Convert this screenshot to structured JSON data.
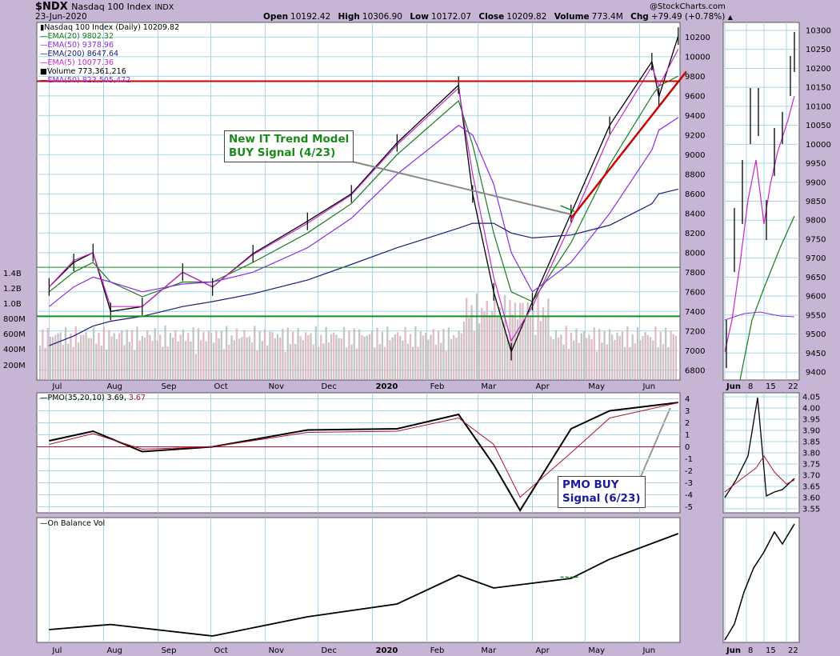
{
  "header": {
    "symbol": "$NDX",
    "name": "Nasdaq 100 Index",
    "exchange": "INDX",
    "date": "23-Jun-2020",
    "copyright": "@StockCharts.com",
    "open_label": "Open",
    "open": "10192.42",
    "high_label": "High",
    "high": "10306.90",
    "low_label": "Low",
    "low": "10172.07",
    "close_label": "Close",
    "close": "10209.82",
    "volume_label": "Volume",
    "volume": "773.4M",
    "chg_label": "Chg",
    "chg": "+79.49 (+0.78%)"
  },
  "legend": [
    {
      "text": "Nasdaq 100 Index (Daily) 10209.82",
      "color": "#000000"
    },
    {
      "text": "EMA(20) 9802.32",
      "color": "#1a7a1a"
    },
    {
      "text": "EMA(50) 9378.96",
      "color": "#8a2be2"
    },
    {
      "text": "EMA(200) 8647.64",
      "color": "#1c1c7a"
    },
    {
      "text": "EMA(5) 10077.36",
      "color": "#cc22cc"
    },
    {
      "text": "Volume 773,361,216",
      "color": "#000000"
    },
    {
      "text": "EMA(50) 823,505,472",
      "color": "#8a2be2"
    }
  ],
  "annotations": {
    "it_trend": [
      "New IT Trend Model",
      "BUY Signal (4/23)"
    ],
    "pmo_buy": [
      "PMO BUY",
      "Signal (6/23)"
    ]
  },
  "pmo_legend": {
    "label": "PMO(35,20,10)",
    "pmo": "3.69",
    "signal": "3.67"
  },
  "obv_legend": "On Balance Vol",
  "colors": {
    "background": "#c6b5d5",
    "panel": "#ffffff",
    "grid": "#a8d4e6",
    "support": "#1a8a1a",
    "resistance": "#cc0000",
    "price_bar": "#000000",
    "ema5": "#cc22cc",
    "ema20": "#1a7a1a",
    "ema50": "#8a2be2",
    "ema200": "#1c1c7a",
    "volume_up": "#bbbbbb",
    "volume_down": "#e0aec0",
    "callout_green": "#1a8a1a",
    "callout_blue": "#1a1aa0"
  },
  "chart_data": [
    {
      "type": "line",
      "title": "Nasdaq 100 Index (Daily)",
      "xlabel": "",
      "ylabel": "",
      "ylim": [
        6700,
        10350
      ],
      "price_ticks": [
        "10200",
        "10000",
        "9800",
        "9600",
        "9400",
        "9200",
        "9000",
        "8800",
        "8600",
        "8400",
        "8200",
        "8000",
        "7800",
        "7600",
        "7400",
        "7200",
        "7000",
        "6800"
      ],
      "volume_ticks": [
        "1.4B",
        "1.2B",
        "1.0B",
        "800M",
        "600M",
        "400M",
        "200M"
      ],
      "x_months": [
        "Jul",
        "Aug",
        "Sep",
        "Oct",
        "Nov",
        "Dec",
        "2020",
        "Feb",
        "Mar",
        "Apr",
        "May",
        "Jun"
      ],
      "x": [
        "2019-07-01",
        "2019-07-15",
        "2019-07-26",
        "2019-08-05",
        "2019-08-23",
        "2019-09-15",
        "2019-10-02",
        "2019-10-25",
        "2019-11-25",
        "2019-12-20",
        "2020-01-15",
        "2020-02-19",
        "2020-02-27",
        "2020-03-10",
        "2020-03-20",
        "2020-04-01",
        "2020-04-23",
        "2020-05-15",
        "2020-06-08",
        "2020-06-12",
        "2020-06-23"
      ],
      "series": [
        {
          "name": "Nasdaq 100 Index (Daily)",
          "values": [
            7650,
            7900,
            8000,
            7400,
            7450,
            7800,
            7650,
            7990,
            8320,
            8600,
            9120,
            9710,
            8600,
            7600,
            6990,
            7500,
            8400,
            9300,
            9950,
            9590,
            10210
          ]
        },
        {
          "name": "EMA(20)",
          "values": [
            7600,
            7800,
            7900,
            7700,
            7550,
            7700,
            7700,
            7900,
            8200,
            8500,
            9000,
            9550,
            9100,
            8200,
            7600,
            7500,
            8100,
            8900,
            9600,
            9700,
            9802
          ]
        },
        {
          "name": "EMA(50)",
          "values": [
            7450,
            7650,
            7750,
            7700,
            7600,
            7680,
            7700,
            7800,
            8050,
            8350,
            8800,
            9300,
            9200,
            8700,
            8000,
            7600,
            7900,
            8400,
            9050,
            9250,
            9379
          ]
        },
        {
          "name": "EMA(200)",
          "values": [
            7050,
            7150,
            7250,
            7300,
            7350,
            7450,
            7500,
            7580,
            7720,
            7880,
            8050,
            8250,
            8300,
            8300,
            8200,
            8150,
            8180,
            8280,
            8500,
            8600,
            8648
          ]
        },
        {
          "name": "EMA(5)",
          "values": [
            7650,
            7920,
            8000,
            7450,
            7450,
            7800,
            7650,
            7980,
            8300,
            8590,
            9100,
            9680,
            8800,
            7750,
            7100,
            7450,
            8300,
            9200,
            9900,
            9700,
            10077
          ]
        }
      ],
      "support_level": 7350,
      "secondary_support": 7850,
      "resistance_level": 9750,
      "rising_trendline": [
        [
          "2020-04-23",
          8350
        ],
        [
          "2020-06-23",
          9750
        ]
      ]
    },
    {
      "type": "line",
      "title": "PMO(35,20,10)",
      "ylim": [
        -5.5,
        4.5
      ],
      "ticks": [
        "4",
        "3",
        "2",
        "1",
        "0",
        "-1",
        "-2",
        "-3",
        "-4",
        "-5"
      ],
      "x": [
        "2019-07-01",
        "2019-07-26",
        "2019-08-23",
        "2019-10-02",
        "2019-11-25",
        "2020-01-15",
        "2020-02-19",
        "2020-03-10",
        "2020-03-25",
        "2020-04-23",
        "2020-05-15",
        "2020-06-23"
      ],
      "series": [
        {
          "name": "PMO",
          "values": [
            0.5,
            1.3,
            -0.4,
            0,
            1.4,
            1.5,
            2.7,
            -1.5,
            -5.3,
            1.5,
            3.0,
            3.69
          ]
        },
        {
          "name": "Signal",
          "values": [
            0.2,
            1.1,
            -0.2,
            0,
            1.2,
            1.3,
            2.4,
            0.2,
            -4.2,
            -0.5,
            2.4,
            3.67
          ]
        }
      ]
    },
    {
      "type": "line",
      "title": "On Balance Vol",
      "x": [
        "2019-07-01",
        "2019-08-05",
        "2019-10-02",
        "2019-11-25",
        "2020-01-15",
        "2020-02-19",
        "2020-03-10",
        "2020-04-23",
        "2020-05-15",
        "2020-06-23"
      ],
      "series": [
        {
          "name": "On Balance Vol",
          "values": [
            10,
            18,
            0,
            30,
            50,
            95,
            75,
            90,
            120,
            160
          ]
        }
      ]
    },
    {
      "type": "line",
      "title": "Zoom panel (June)",
      "price_ticks": [
        "10300",
        "10250",
        "10200",
        "10150",
        "10100",
        "10050",
        "10000",
        "9950",
        "9900",
        "9850",
        "9800",
        "9750",
        "9700",
        "9650",
        "9600",
        "9550",
        "9500",
        "9450",
        "9400"
      ],
      "pmo_ticks": [
        "4.05",
        "4.00",
        "3.95",
        "3.90",
        "3.85",
        "3.80",
        "3.75",
        "3.70",
        "3.65",
        "3.60",
        "3.55"
      ],
      "x_labels": [
        "Jun",
        "8",
        "15",
        "22"
      ]
    }
  ]
}
